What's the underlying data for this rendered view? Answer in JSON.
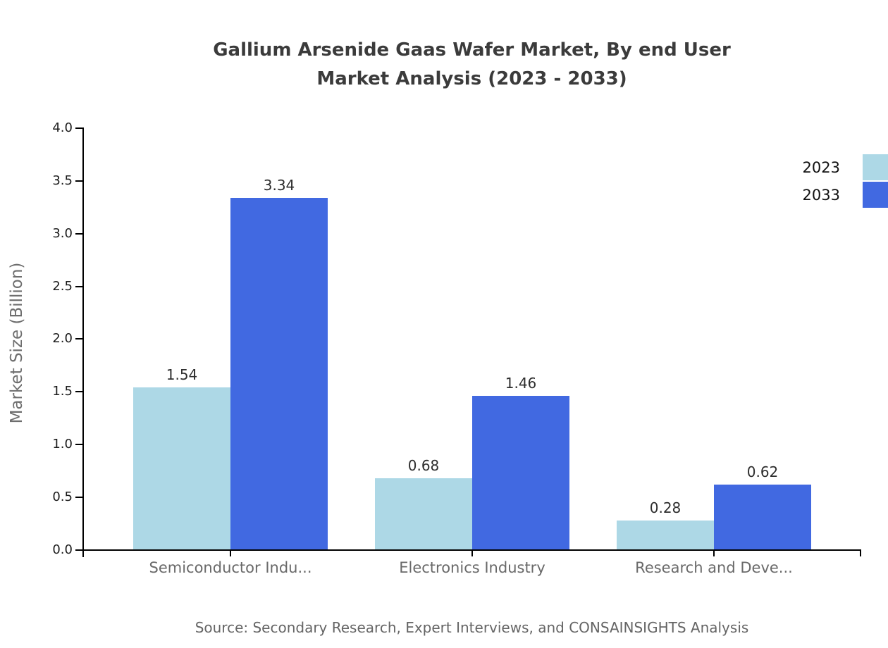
{
  "title": "Gallium Arsenide Gaas Wafer Market, By end User\nMarket Analysis (2023 - 2033)",
  "source_note": "Source: Secondary Research, Expert Interviews, and CONSAINSIGHTS Analysis",
  "colors": {
    "series_2023": "#ADD8E6",
    "series_2033": "#4169E1",
    "axis": "#000000",
    "title_text": "#3b3b3b",
    "tick_text": "#1c1c1c",
    "category_text": "#696969",
    "value_text": "#2d2d2d",
    "muted_text": "#6e6e6e"
  },
  "chart_data": {
    "type": "bar",
    "title": "Gallium Arsenide Gaas Wafer Market, By end User Market Analysis (2023 - 2033)",
    "categories": [
      "Semiconductor Indu...",
      "Electronics Industry",
      "Research and Deve..."
    ],
    "series": [
      {
        "name": "2023",
        "color": "#ADD8E6",
        "values": [
          1.54,
          0.68,
          0.28
        ]
      },
      {
        "name": "2033",
        "color": "#4169E1",
        "values": [
          3.34,
          1.46,
          0.62
        ]
      }
    ],
    "value_labels": [
      "1.54",
      "3.34",
      "0.68",
      "1.46",
      "0.28",
      "0.62"
    ],
    "xlabel": "",
    "ylabel": "Market Size (Billion)",
    "ylim": [
      0.0,
      4.0
    ],
    "yticks": [
      0.0,
      0.5,
      1.0,
      1.5,
      2.0,
      2.5,
      3.0,
      3.5,
      4.0
    ],
    "ytick_labels": [
      "0.0",
      "0.5",
      "1.0",
      "1.5",
      "2.0",
      "2.5",
      "3.0",
      "3.5",
      "4.0"
    ],
    "grid": false,
    "legend_position": "upper-right-outside",
    "bar_value_labels_shown": true
  }
}
